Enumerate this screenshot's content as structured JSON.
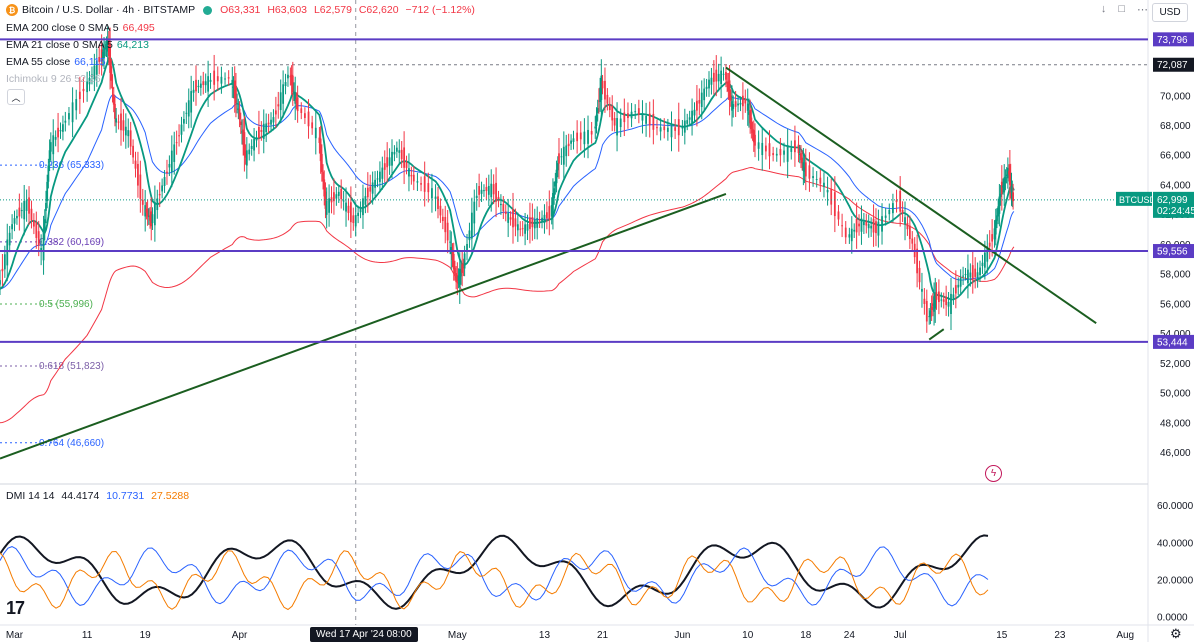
{
  "header": {
    "symbol_title": "Bitcoin / U.S. Dollar · 4h · BITSTAMP",
    "open": "O63,331",
    "high": "H63,603",
    "low": "L62,579",
    "close": "C62,620",
    "change": "−712 (−1.12%)",
    "currency": "USD"
  },
  "indicators": {
    "ema200": {
      "label": "EMA 200 close 0 SMA 5",
      "value": "66,495",
      "color": "#f23645"
    },
    "ema21": {
      "label": "EMA 21 close 0 SMA 5",
      "value": "64,213",
      "color": "#089981"
    },
    "ema55": {
      "label": "EMA 55 close",
      "value": "66,115",
      "color": "#2962ff"
    },
    "ichimoku": {
      "label": "Ichimoku 9 26 52 26"
    }
  },
  "chart_data": [
    {
      "type": "candlestick",
      "symbol": "BTCUSD",
      "last_price": "62,999",
      "countdown": "02:24:45",
      "ylim": [
        45500,
        75500
      ],
      "xlim": [
        "2024-02-28",
        "2024-08-04"
      ],
      "x_tick_labels": [
        {
          "date": "2024-03-01",
          "label": "Mar"
        },
        {
          "date": "2024-03-11",
          "label": "11"
        },
        {
          "date": "2024-03-19",
          "label": "19"
        },
        {
          "date": "2024-04-01",
          "label": "Apr"
        },
        {
          "date": "2024-05-01",
          "label": "May"
        },
        {
          "date": "2024-05-13",
          "label": "13"
        },
        {
          "date": "2024-05-21",
          "label": "21"
        },
        {
          "date": "2024-06-01",
          "label": "Jun"
        },
        {
          "date": "2024-06-10",
          "label": "10"
        },
        {
          "date": "2024-06-18",
          "label": "18"
        },
        {
          "date": "2024-06-24",
          "label": "24"
        },
        {
          "date": "2024-07-01",
          "label": "Jul"
        },
        {
          "date": "2024-07-15",
          "label": "15"
        },
        {
          "date": "2024-07-23",
          "label": "23"
        },
        {
          "date": "2024-08-01",
          "label": "Aug"
        }
      ],
      "y_tick_labels": [
        "70,000",
        "68,000",
        "66,000",
        "64,000",
        "62,000",
        "60,000",
        "58,000",
        "56,000",
        "54,000",
        "52,000",
        "50,000",
        "48,000",
        "46,000"
      ],
      "y_ticks": [
        70000,
        68000,
        66000,
        64000,
        62000,
        60000,
        58000,
        56000,
        54000,
        52000,
        50000,
        48000,
        46000
      ],
      "horizontal_levels": [
        {
          "price": 73796,
          "label": "73,796"
        },
        {
          "price": 59556,
          "label": "59,556"
        },
        {
          "price": 53444,
          "label": "53,444"
        }
      ],
      "ath_label": "72,087",
      "ath_price": 72087,
      "fib_levels": [
        {
          "ratio": "0.236",
          "price": 65333,
          "label": "(65,333)",
          "color": "#2962ff"
        },
        {
          "ratio": "0.382",
          "price": 60169,
          "label": "(60,169)",
          "color": "#6a3fb5"
        },
        {
          "ratio": "0.5",
          "price": 55996,
          "label": "(55,996)",
          "color": "#4caf50"
        },
        {
          "ratio": "0.618",
          "price": 51823,
          "label": "(51,823)",
          "color": "#7b5ea7"
        },
        {
          "ratio": "0.764",
          "price": 46660,
          "label": "(46,660)",
          "color": "#2962ff"
        }
      ],
      "trendlines": [
        {
          "from": [
            "2024-02-28",
            45600
          ],
          "to": [
            "2024-06-07",
            63400
          ]
        },
        {
          "from": [
            "2024-06-07",
            71900
          ],
          "to": [
            "2024-07-28",
            54700
          ]
        },
        {
          "from": [
            "2024-07-05",
            53600
          ],
          "to": [
            "2024-07-07",
            54300
          ]
        }
      ],
      "crosshair_label": "Wed 17 Apr '24  08:00",
      "crosshair_date": "2024-04-17",
      "close_path": [
        [
          "2024-02-28",
          57000
        ],
        [
          "2024-03-01",
          61500
        ],
        [
          "2024-03-03",
          62800
        ],
        [
          "2024-03-05",
          59500
        ],
        [
          "2024-03-06",
          66500
        ],
        [
          "2024-03-08",
          68000
        ],
        [
          "2024-03-11",
          70500
        ],
        [
          "2024-03-13",
          72500
        ],
        [
          "2024-03-14",
          73600
        ],
        [
          "2024-03-15",
          68500
        ],
        [
          "2024-03-17",
          67500
        ],
        [
          "2024-03-19",
          62500
        ],
        [
          "2024-03-20",
          61500
        ],
        [
          "2024-03-22",
          64500
        ],
        [
          "2024-03-24",
          67500
        ],
        [
          "2024-03-26",
          70500
        ],
        [
          "2024-03-28",
          71000
        ],
        [
          "2024-03-31",
          71200
        ],
        [
          "2024-04-01",
          69000
        ],
        [
          "2024-04-02",
          65800
        ],
        [
          "2024-04-04",
          67500
        ],
        [
          "2024-04-06",
          68500
        ],
        [
          "2024-04-08",
          71500
        ],
        [
          "2024-04-09",
          69500
        ],
        [
          "2024-04-12",
          67500
        ],
        [
          "2024-04-13",
          62500
        ],
        [
          "2024-04-15",
          63500
        ],
        [
          "2024-04-17",
          61500
        ],
        [
          "2024-04-19",
          63500
        ],
        [
          "2024-04-21",
          65000
        ],
        [
          "2024-04-23",
          66500
        ],
        [
          "2024-04-25",
          64500
        ],
        [
          "2024-04-28",
          63500
        ],
        [
          "2024-04-30",
          60500
        ],
        [
          "2024-05-01",
          57500
        ],
        [
          "2024-05-02",
          58500
        ],
        [
          "2024-05-04",
          63500
        ],
        [
          "2024-05-06",
          63800
        ],
        [
          "2024-05-08",
          62000
        ],
        [
          "2024-05-10",
          61000
        ],
        [
          "2024-05-12",
          61500
        ],
        [
          "2024-05-14",
          62000
        ],
        [
          "2024-05-15",
          65500
        ],
        [
          "2024-05-17",
          67000
        ],
        [
          "2024-05-20",
          67500
        ],
        [
          "2024-05-21",
          71000
        ],
        [
          "2024-05-23",
          68000
        ],
        [
          "2024-05-26",
          69000
        ],
        [
          "2024-05-29",
          67800
        ],
        [
          "2024-06-01",
          67700
        ],
        [
          "2024-06-03",
          69000
        ],
        [
          "2024-06-05",
          71000
        ],
        [
          "2024-06-07",
          71500
        ],
        [
          "2024-06-08",
          69300
        ],
        [
          "2024-06-10",
          69600
        ],
        [
          "2024-06-11",
          67000
        ],
        [
          "2024-06-14",
          66000
        ],
        [
          "2024-06-17",
          66500
        ],
        [
          "2024-06-18",
          65000
        ],
        [
          "2024-06-21",
          64000
        ],
        [
          "2024-06-24",
          60500
        ],
        [
          "2024-06-26",
          61500
        ],
        [
          "2024-06-28",
          61000
        ],
        [
          "2024-07-01",
          63000
        ],
        [
          "2024-07-03",
          60000
        ],
        [
          "2024-07-05",
          55000
        ],
        [
          "2024-07-06",
          56500
        ],
        [
          "2024-07-08",
          56000
        ],
        [
          "2024-07-10",
          58000
        ],
        [
          "2024-07-12",
          58000
        ],
        [
          "2024-07-14",
          60500
        ],
        [
          "2024-07-15",
          63500
        ],
        [
          "2024-07-16",
          65000
        ],
        [
          "2024-07-16T16:00",
          62999
        ]
      ]
    },
    {
      "type": "line",
      "title": "DMI 14 14",
      "values_text": [
        "44.4174",
        "10.7731",
        "27.5288"
      ],
      "ylim": [
        0,
        62000
      ],
      "y_tick_labels": [
        "60.0000",
        "40.0000",
        "20.0000",
        "0.0000"
      ],
      "y_ticks": [
        60000,
        40000,
        20000,
        0
      ],
      "series": [
        {
          "color": "#131722",
          "last": 44.4174
        },
        {
          "color": "#2962ff",
          "last": 10.7731
        },
        {
          "color": "#f57c00",
          "last": 27.5288
        }
      ]
    }
  ]
}
